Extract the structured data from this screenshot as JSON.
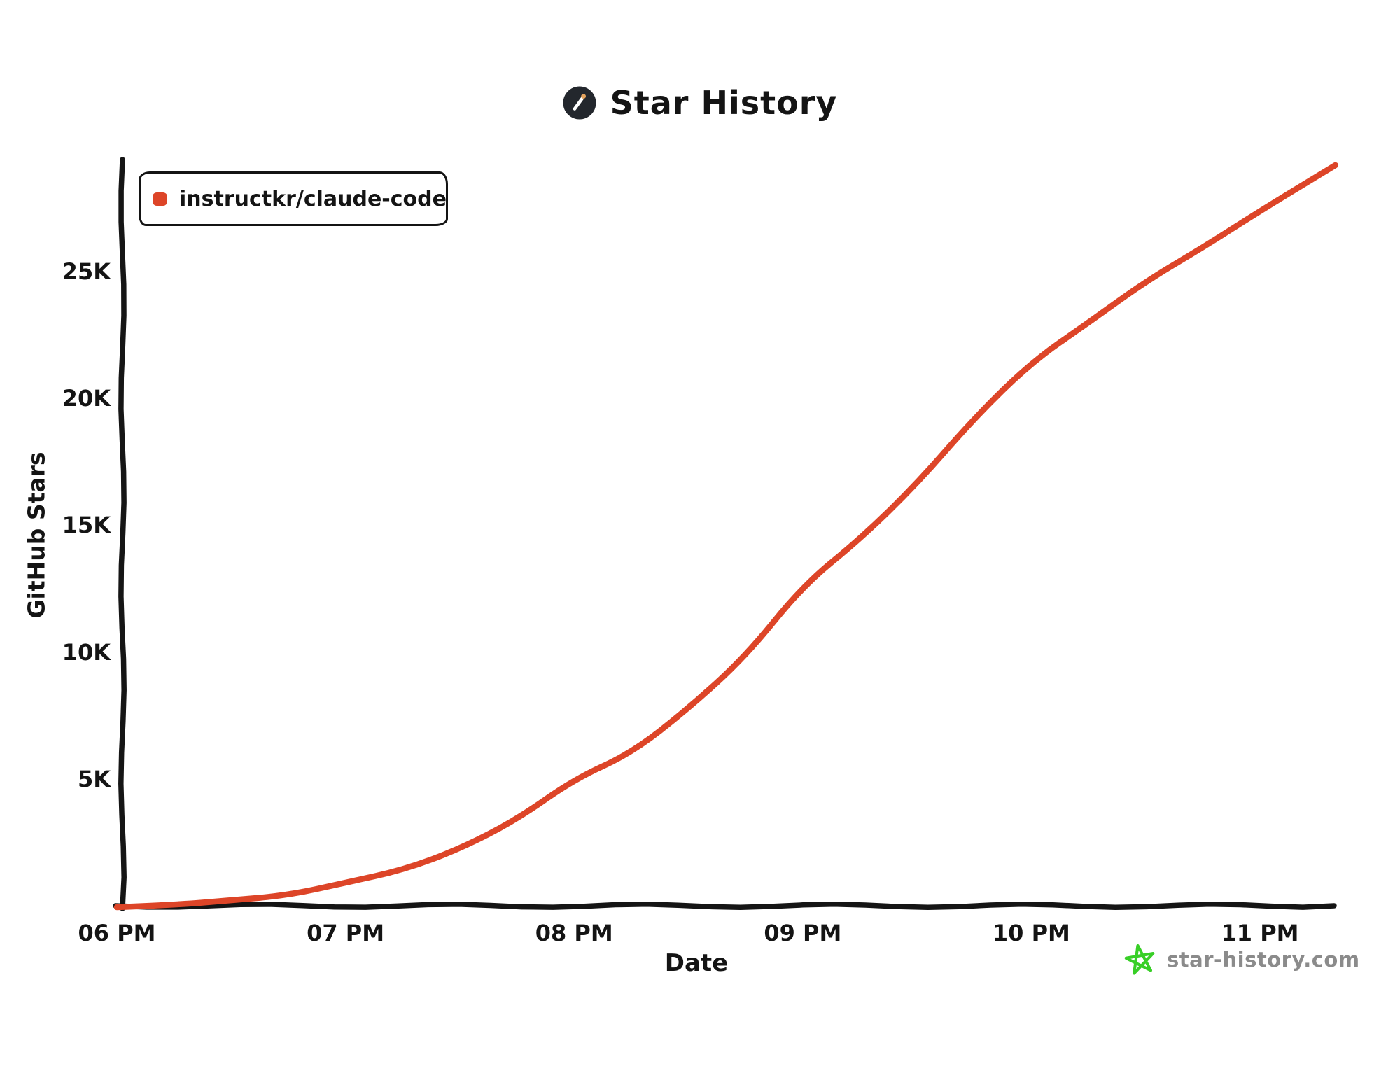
{
  "header": {
    "title": "Star History"
  },
  "legend": {
    "items": [
      {
        "label": "instructkr/claude-code",
        "color": "#dd4528"
      }
    ]
  },
  "chart_data": {
    "type": "line",
    "title": "Star History",
    "xlabel": "Date",
    "ylabel": "GitHub Stars",
    "grid": false,
    "legend_position": "top-left",
    "x_range_hours": [
      18,
      23.35
    ],
    "ylim": [
      0,
      29500
    ],
    "x_ticks": [
      {
        "hour": 18,
        "label": "06 PM"
      },
      {
        "hour": 19,
        "label": "07 PM"
      },
      {
        "hour": 20,
        "label": "08 PM"
      },
      {
        "hour": 21,
        "label": "09 PM"
      },
      {
        "hour": 22,
        "label": "10 PM"
      },
      {
        "hour": 23,
        "label": "11 PM"
      }
    ],
    "y_ticks": [
      {
        "value": 5000,
        "label": "5K"
      },
      {
        "value": 10000,
        "label": "10K"
      },
      {
        "value": 15000,
        "label": "15K"
      },
      {
        "value": 20000,
        "label": "20K"
      },
      {
        "value": 25000,
        "label": "25K"
      }
    ],
    "series": [
      {
        "name": "instructkr/claude-code",
        "color": "#dd4528",
        "x_hours": [
          18.0,
          18.25,
          18.5,
          18.75,
          19.0,
          19.25,
          19.5,
          19.75,
          20.0,
          20.25,
          20.5,
          20.75,
          21.0,
          21.25,
          21.5,
          21.75,
          22.0,
          22.25,
          22.5,
          22.75,
          23.0,
          23.33
        ],
        "values": [
          0,
          100,
          250,
          500,
          930,
          1500,
          2250,
          3500,
          5000,
          6100,
          7800,
          9900,
          12650,
          14500,
          16700,
          19250,
          21500,
          23000,
          24700,
          25950,
          27480,
          29200
        ]
      }
    ]
  },
  "watermark": {
    "text": "star-history.com",
    "icon_color": "#38cf27",
    "text_color": "#8b8b8b"
  },
  "colors": {
    "axis": "#151515",
    "background": "#ffffff",
    "logo_circle": "#23272d",
    "logo_match_tip": "#e3a35e"
  }
}
